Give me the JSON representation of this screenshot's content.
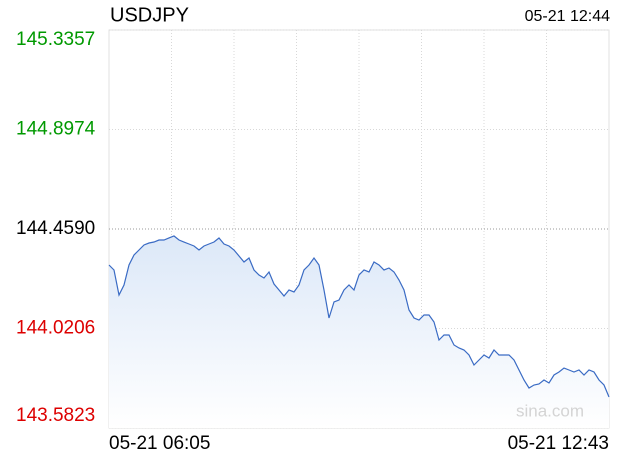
{
  "chart_data": {
    "type": "line",
    "title": "USDJPY",
    "timestamp": "05-21 12:44",
    "watermark": "sina.com",
    "color": "#3a6bc4",
    "up_color": "#009900",
    "down_color": "#dd0000",
    "reference": 144.459,
    "grid": true,
    "x_grid_divisions": 8,
    "xlim": [
      0,
      100
    ],
    "xticks": [
      {
        "value": 0,
        "label": "05-21 06:05"
      },
      {
        "value": 100,
        "label": "05-21 12:43"
      }
    ],
    "ylim": [
      143.5823,
      145.3357
    ],
    "yticks": [
      145.3357,
      144.8974,
      {
        "value": 144.459,
        "label": "144.4590"
      },
      144.0206,
      143.5823
    ],
    "values": [
      144.3004,
      144.2784,
      144.1682,
      144.2123,
      144.3004,
      144.3445,
      144.3665,
      144.3885,
      144.3973,
      144.4017,
      144.4105,
      144.4105,
      144.4194,
      144.4282,
      144.4105,
      144.4017,
      144.3929,
      144.3841,
      144.3665,
      144.3841,
      144.3929,
      144.4017,
      144.4194,
      144.3929,
      144.3841,
      144.3665,
      144.3401,
      144.3136,
      144.3312,
      144.2784,
      144.2564,
      144.2431,
      144.2696,
      144.2167,
      144.1903,
      144.1638,
      144.1903,
      144.1815,
      144.2123,
      144.2784,
      144.3004,
      144.3312,
      144.3004,
      144.1903,
      144.0669,
      144.1374,
      144.1462,
      144.1903,
      144.2123,
      144.1903,
      144.2564,
      144.2784,
      144.2696,
      144.3136,
      144.3004,
      144.2784,
      144.2872,
      144.2696,
      144.2343,
      144.1903,
      144.1022,
      144.0669,
      144.0581,
      144.0801,
      144.0801,
      144.0493,
      143.97,
      143.992,
      143.992,
      143.948,
      143.9348,
      143.9259,
      143.9039,
      143.8599,
      143.8819,
      143.9039,
      143.8907,
      143.9259,
      143.9039,
      143.9039,
      143.9039,
      143.8819,
      143.8378,
      143.7938,
      143.7585,
      143.7717,
      143.7762,
      143.7938,
      143.7806,
      143.8158,
      143.829,
      143.8466,
      143.8378,
      143.829,
      143.8378,
      143.8158,
      143.8378,
      143.829,
      143.7938,
      143.7717,
      143.7189
    ]
  }
}
